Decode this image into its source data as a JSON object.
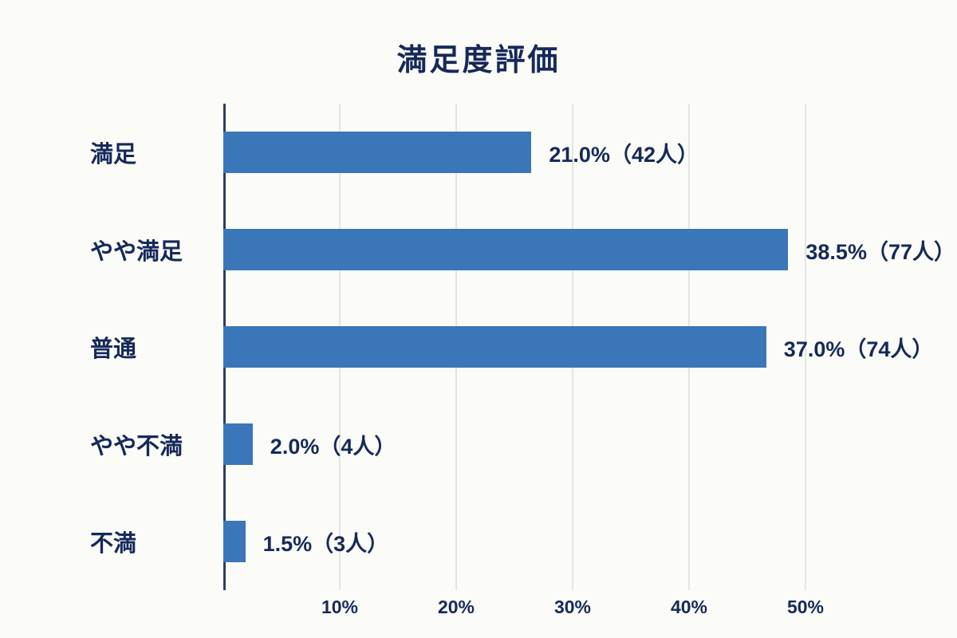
{
  "chart_data": {
    "type": "bar",
    "orientation": "horizontal",
    "title": "満足度評価",
    "categories": [
      "満足",
      "やや満足",
      "普通",
      "やや不満",
      "不満"
    ],
    "values": [
      21.0,
      38.5,
      37.0,
      2.0,
      1.5
    ],
    "counts": [
      42,
      77,
      74,
      4,
      3
    ],
    "value_labels": [
      "21.0%（42人）",
      "38.5%（77人）",
      "37.0%（74人）",
      "2.0%（4人）",
      "1.5%（3人）"
    ],
    "x_ticks": [
      "10%",
      "20%",
      "30%",
      "40%",
      "50%"
    ],
    "x_tick_values": [
      10,
      20,
      30,
      40,
      50
    ],
    "xlim": [
      0,
      50
    ],
    "grid": true,
    "legend": "none",
    "colors": {
      "bar": "#3a76b8",
      "text": "#16295a",
      "grid": "#e4e4e0",
      "axis": "#2f3e5c",
      "background": "#fbfbf7"
    }
  }
}
